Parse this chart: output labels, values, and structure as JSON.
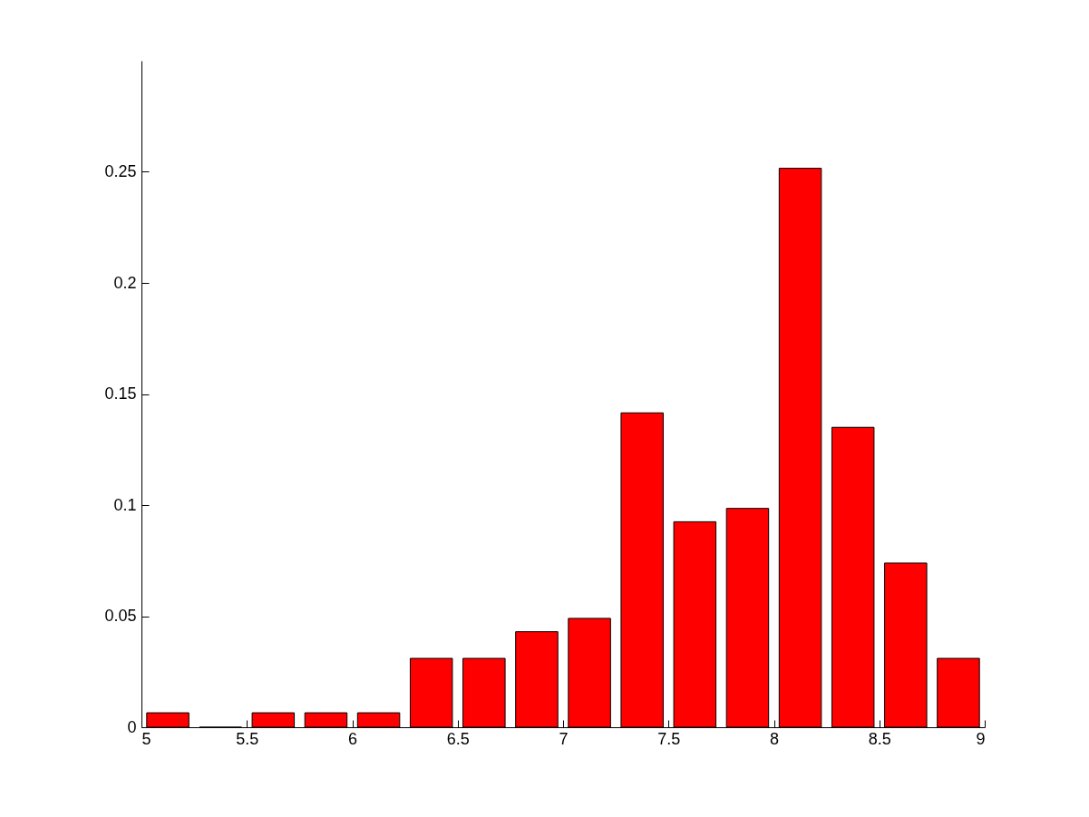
{
  "chart_data": {
    "type": "bar",
    "x": [
      5.125,
      5.375,
      5.625,
      5.875,
      6.125,
      6.375,
      6.625,
      6.875,
      7.125,
      7.375,
      7.625,
      7.875,
      8.125,
      8.375,
      8.625,
      8.875
    ],
    "values": [
      0.0065,
      0,
      0.0065,
      0.0065,
      0.0065,
      0.031,
      0.031,
      0.043,
      0.049,
      0.1415,
      0.0925,
      0.0985,
      0.2516,
      0.135,
      0.0739,
      0.031
    ],
    "color": "#ff0000",
    "xlim": [
      5,
      9
    ],
    "xticks": [
      5,
      5.5,
      6,
      6.5,
      7,
      7.5,
      8,
      8.5,
      9
    ],
    "ylim": [
      0,
      0.3
    ],
    "yticks": [
      0,
      0.05,
      0.1,
      0.15,
      0.2,
      0.25
    ],
    "grid": false
  }
}
